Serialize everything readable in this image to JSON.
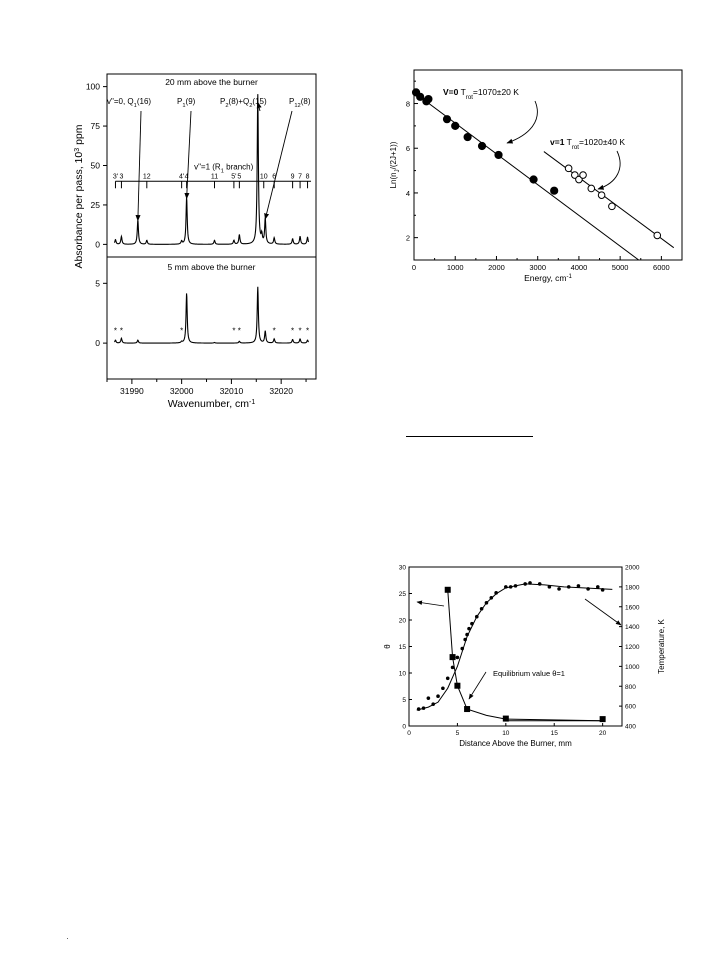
{
  "chart_data": [
    {
      "type": "line",
      "stack": "two vertically stacked spectrum panels sharing the x axis",
      "xlabel": "Wavenumber, cm",
      "xlabel_sup": "-1",
      "ylabel": "Absorbance per pass, 10",
      "ylabel_sup": "3",
      "ylabel_end": " ppm",
      "xlim": [
        31985,
        32027
      ],
      "x_ticks": [
        "31990",
        "32000",
        "32010",
        "32020"
      ],
      "top_panel": {
        "title": "20 mm above the burner",
        "ylim": [
          -8,
          108
        ],
        "y_ticks": [
          "0",
          "25",
          "50",
          "75",
          "100"
        ],
        "annotations": [
          {
            "parts": [
              [
                "v\"=0, Q",
                ""
              ],
              [
                "1",
                "sub"
              ],
              [
                "(16)",
                ""
              ]
            ],
            "target_x": 31991.2,
            "target_y": 15
          },
          {
            "parts": [
              [
                "P",
                ""
              ],
              [
                "1",
                "sub"
              ],
              [
                "(9)",
                ""
              ]
            ],
            "target_x": 32001.0,
            "target_y": 29
          },
          {
            "parts": [
              [
                "P",
                ""
              ],
              [
                "2",
                "sub"
              ],
              [
                "(8)+Q",
                ""
              ],
              [
                "2",
                "sub"
              ],
              [
                "(15)",
                ""
              ]
            ],
            "target_x": 32015.3,
            "target_y": 90
          },
          {
            "parts": [
              [
                "P",
                ""
              ],
              [
                "12",
                "sub"
              ],
              [
                "(8)",
                ""
              ]
            ],
            "target_x": 32016.8,
            "target_y": 16
          }
        ],
        "branch_label": {
          "parts": [
            [
              "v\"=1 (R",
              ""
            ],
            [
              "1",
              "sub"
            ],
            [
              " branch)",
              ""
            ]
          ]
        },
        "branch_line_range": [
          31986.7,
          32026.0
        ],
        "branch_ticks": [
          {
            "x": 31986.7,
            "label": "3'"
          },
          {
            "x": 31987.9,
            "label": "3"
          },
          {
            "x": 31993.0,
            "label": "12"
          },
          {
            "x": 32000.0,
            "label": "4'"
          },
          {
            "x": 32001.0,
            "label": "4"
          },
          {
            "x": 32006.6,
            "label": "11"
          },
          {
            "x": 32010.5,
            "label": "5'"
          },
          {
            "x": 32011.6,
            "label": "5"
          },
          {
            "x": 32016.5,
            "label": "10"
          },
          {
            "x": 32018.6,
            "label": "6"
          },
          {
            "x": 32022.3,
            "label": "9"
          },
          {
            "x": 32023.8,
            "label": "7"
          },
          {
            "x": 32025.3,
            "label": "8"
          }
        ],
        "peaks": [
          {
            "x": 31986.7,
            "h": 3.0
          },
          {
            "x": 31987.9,
            "h": 5.0
          },
          {
            "x": 31991.2,
            "h": 15.5
          },
          {
            "x": 31993.0,
            "h": 2.5
          },
          {
            "x": 32000.0,
            "h": 2.0
          },
          {
            "x": 32001.0,
            "h": 30.0
          },
          {
            "x": 32006.6,
            "h": 2.5
          },
          {
            "x": 32010.5,
            "h": 2.5
          },
          {
            "x": 32011.6,
            "h": 6.0
          },
          {
            "x": 32015.3,
            "h": 95.0
          },
          {
            "x": 32016.1,
            "h": 5.0
          },
          {
            "x": 32016.8,
            "h": 16.0
          },
          {
            "x": 32018.6,
            "h": 4.0
          },
          {
            "x": 32022.3,
            "h": 3.5
          },
          {
            "x": 32023.8,
            "h": 5.0
          },
          {
            "x": 32025.3,
            "h": 4.5
          }
        ]
      },
      "bottom_panel": {
        "title": "5 mm above the burner",
        "ylim": [
          -3,
          7.2
        ],
        "y_ticks": [
          "0",
          "5"
        ],
        "asterisks": [
          31986.7,
          31987.9,
          32000.0,
          32010.5,
          32011.6,
          32018.6,
          32022.3,
          32023.8,
          32025.3
        ],
        "peaks": [
          {
            "x": 31986.7,
            "h": 0.25
          },
          {
            "x": 31987.9,
            "h": 0.4
          },
          {
            "x": 31991.2,
            "h": 0.25
          },
          {
            "x": 32000.0,
            "h": 0.1
          },
          {
            "x": 32001.0,
            "h": 4.2
          },
          {
            "x": 32006.6,
            "h": 0.05
          },
          {
            "x": 32011.6,
            "h": 0.15
          },
          {
            "x": 32015.3,
            "h": 4.7
          },
          {
            "x": 32016.8,
            "h": 1.0
          },
          {
            "x": 32018.6,
            "h": 0.35
          },
          {
            "x": 32022.3,
            "h": 0.3
          },
          {
            "x": 32023.8,
            "h": 0.35
          },
          {
            "x": 32025.3,
            "h": 0.25
          }
        ]
      }
    },
    {
      "type": "scatter",
      "xlabel": "Energy, cm",
      "xlabel_sup": "-1",
      "ylabel": "Ln(n /(2J+1))",
      "ylabel_sub": "J",
      "xlim": [
        0,
        6500
      ],
      "ylim": [
        1,
        9.5
      ],
      "x_ticks": [
        0,
        1000,
        2000,
        3000,
        4000,
        5000,
        6000
      ],
      "y_ticks": [
        2,
        4,
        6,
        8
      ],
      "series": [
        {
          "name_parts": [
            [
              "V=0",
              "bold"
            ],
            [
              " T",
              ""
            ],
            [
              "rot",
              "sub"
            ],
            [
              "=1070±20 K",
              ""
            ]
          ],
          "marker": "filled",
          "x": [
            50,
            150,
            300,
            350,
            800,
            1000,
            1300,
            1650,
            2050,
            2900,
            3400
          ],
          "y": [
            8.5,
            8.3,
            8.1,
            8.2,
            7.3,
            7.0,
            6.5,
            6.1,
            5.7,
            4.6,
            4.1
          ],
          "fit": [
            [
              0,
              8.5
            ],
            [
              5450,
              1.0
            ]
          ]
        },
        {
          "name_parts": [
            [
              "v=1",
              "bold"
            ],
            [
              " T",
              ""
            ],
            [
              "rot",
              "sub"
            ],
            [
              "=1020±40 K",
              ""
            ]
          ],
          "marker": "open",
          "x": [
            3750,
            3900,
            4000,
            4100,
            4300,
            4550,
            4800,
            5900
          ],
          "y": [
            5.1,
            4.8,
            4.6,
            4.8,
            4.2,
            3.9,
            3.4,
            2.1
          ],
          "fit": [
            [
              3150,
              5.85
            ],
            [
              6300,
              1.55
            ]
          ]
        }
      ]
    },
    {
      "type": "scatter",
      "xlabel": "Distance Above the Burner, mm",
      "ylabel_left": "θ",
      "ylabel_right": "Temperature, K",
      "xlim": [
        0,
        22
      ],
      "ylim_left": [
        0,
        30
      ],
      "ylim_right": [
        400,
        2000
      ],
      "x_ticks": [
        0,
        5,
        10,
        15,
        20
      ],
      "y_ticks_left": [
        0,
        5,
        10,
        15,
        20,
        25,
        30
      ],
      "y_ticks_right": [
        400,
        600,
        800,
        1000,
        1200,
        1400,
        1600,
        1800,
        2000
      ],
      "annotation": "Equilibrium value θ=1",
      "series": [
        {
          "name": "",
          "axis": "left",
          "marker": "square",
          "x": [
            4.0,
            4.5,
            5.0,
            6.0,
            10.0,
            20.0
          ],
          "y": [
            25.7,
            13.0,
            7.6,
            3.2,
            1.4,
            1.3
          ],
          "curve": [
            [
              4.0,
              25.7
            ],
            [
              4.5,
              13.0
            ],
            [
              5.0,
              7.6
            ],
            [
              6.0,
              3.2
            ],
            [
              8.0,
              2.0
            ],
            [
              10.0,
              1.3
            ],
            [
              20.0,
              1.0
            ]
          ],
          "equilibrium_line": [
            [
              10.0,
              1.0
            ],
            [
              20.0,
              1.0
            ]
          ]
        },
        {
          "name": "",
          "axis": "right",
          "marker": "dot",
          "x": [
            1.0,
            1.5,
            2.0,
            2.5,
            3.0,
            3.5,
            4.0,
            4.5,
            5.0,
            5.5,
            5.8,
            6.0,
            6.2,
            6.5,
            7.0,
            7.5,
            8.0,
            8.5,
            9.0,
            10.0,
            10.5,
            11.0,
            12.0,
            12.5,
            13.5,
            14.5,
            15.5,
            16.5,
            17.5,
            18.5,
            19.5,
            20.0
          ],
          "y": [
            570,
            580,
            680,
            620,
            700,
            780,
            880,
            990,
            1090,
            1180,
            1270,
            1320,
            1380,
            1430,
            1500,
            1580,
            1640,
            1690,
            1740,
            1800,
            1800,
            1810,
            1830,
            1840,
            1830,
            1800,
            1780,
            1800,
            1810,
            1780,
            1800,
            1770
          ],
          "curve": [
            [
              0.8,
              560
            ],
            [
              2.0,
              590
            ],
            [
              3.0,
              640
            ],
            [
              4.0,
              780
            ],
            [
              5.0,
              1000
            ],
            [
              6.0,
              1300
            ],
            [
              7.0,
              1500
            ],
            [
              8.0,
              1640
            ],
            [
              9.0,
              1730
            ],
            [
              10.0,
              1790
            ],
            [
              12.0,
              1830
            ],
            [
              14.0,
              1820
            ],
            [
              16.0,
              1800
            ],
            [
              18.0,
              1790
            ],
            [
              20.0,
              1780
            ],
            [
              21.0,
              1775
            ]
          ]
        }
      ]
    }
  ]
}
